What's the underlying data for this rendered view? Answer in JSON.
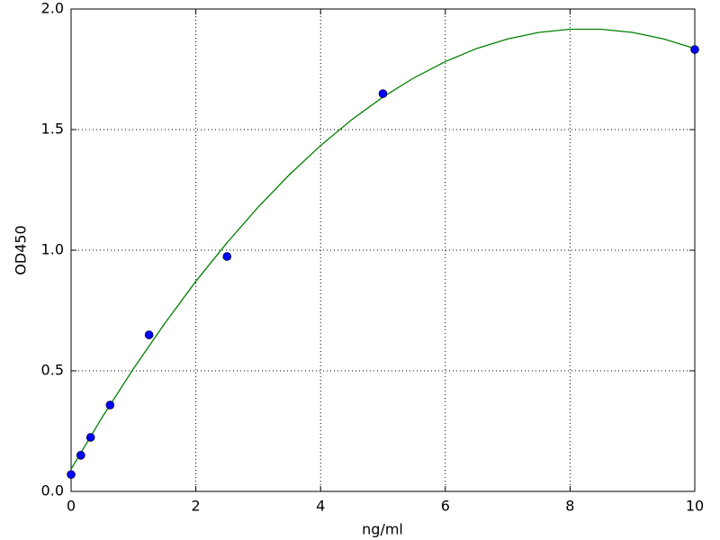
{
  "chart_data": {
    "type": "scatter",
    "xlabel": "ng/ml",
    "ylabel": "OD450",
    "xlim": [
      0,
      10
    ],
    "xticks": [
      0,
      2,
      4,
      6,
      8,
      10
    ],
    "ylim": [
      0,
      2
    ],
    "yticks": [
      {
        "value": 0,
        "label": "0.0"
      },
      0.5,
      {
        "value": 1,
        "label": "1.0"
      },
      1.5,
      {
        "value": 2,
        "label": "2.0"
      }
    ],
    "grid": true,
    "series": [
      {
        "type": "scatter",
        "color": "#0000ff",
        "x": [
          0,
          0.156,
          0.3125,
          0.625,
          1.25,
          2.5,
          5,
          10
        ],
        "values": [
          0.07,
          0.15,
          0.224,
          0.358,
          0.649,
          0.974,
          1.649,
          1.832
        ]
      },
      {
        "type": "line",
        "color": "#008000",
        "x": [
          0,
          0.5,
          1,
          1.5,
          2,
          2.5,
          3,
          3.5,
          4,
          4.5,
          5,
          5.5,
          6,
          6.5,
          7,
          7.5,
          8,
          8.5,
          9,
          9.5,
          10
        ],
        "values": [
          0.093,
          0.308,
          0.509,
          0.696,
          0.871,
          1.031,
          1.179,
          1.313,
          1.434,
          1.541,
          1.635,
          1.715,
          1.782,
          1.836,
          1.876,
          1.903,
          1.916,
          1.916,
          1.903,
          1.876,
          1.836
        ]
      }
    ]
  }
}
